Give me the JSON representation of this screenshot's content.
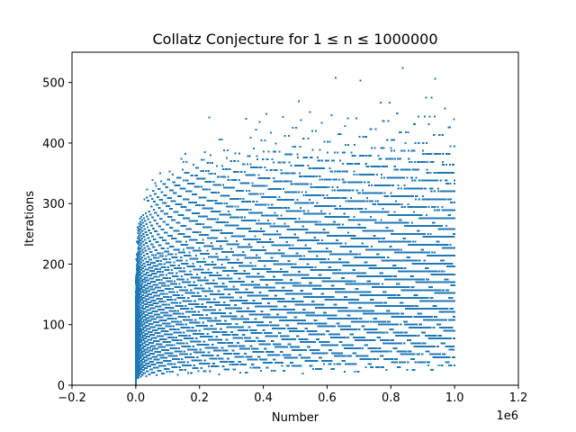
{
  "chart_data": {
    "type": "scatter",
    "title": "Collatz Conjecture for 1 ≤ n ≤ 1000000",
    "xlabel": "Number",
    "ylabel": "Iterations",
    "x_offset_label": "1e6",
    "xlim": [
      -0.2,
      1.2
    ],
    "ylim": [
      0,
      550
    ],
    "x_scale": 1000000,
    "xticks": [
      -0.2,
      0.0,
      0.2,
      0.4,
      0.6,
      0.8,
      1.0,
      1.2
    ],
    "xtick_labels": [
      "−0.2",
      "0.0",
      "0.2",
      "0.4",
      "0.6",
      "0.8",
      "1.0",
      "1.2"
    ],
    "yticks": [
      0,
      100,
      200,
      300,
      400,
      500
    ],
    "ytick_labels": [
      "0",
      "100",
      "200",
      "300",
      "400",
      "500"
    ],
    "grid": false,
    "series": [
      {
        "color": "#1f77b4",
        "x_range": [
          1,
          1000000
        ],
        "notable_points": [
          {
            "x": 230631,
            "y": 442
          },
          {
            "x": 410011,
            "y": 448
          },
          {
            "x": 511935,
            "y": 469
          },
          {
            "x": 626331,
            "y": 508
          },
          {
            "x": 704623,
            "y": 504
          },
          {
            "x": 837799,
            "y": 524
          },
          {
            "x": 939497,
            "y": 506
          },
          {
            "x": 886953,
            "y": 475
          },
          {
            "x": 818943,
            "y": 467
          },
          {
            "x": 780463,
            "y": 467
          },
          {
            "x": 970599,
            "y": 458
          },
          {
            "x": 216367,
            "y": 385
          },
          {
            "x": 156159,
            "y": 382
          },
          {
            "x": 142587,
            "y": 374
          },
          {
            "x": 106239,
            "y": 353
          },
          {
            "x": 77031,
            "y": 350
          },
          {
            "x": 52527,
            "y": 339
          },
          {
            "x": 35655,
            "y": 323
          },
          {
            "x": 26623,
            "y": 307
          },
          {
            "x": 23529,
            "y": 281
          },
          {
            "x": 13255,
            "y": 275
          }
        ]
      }
    ]
  }
}
